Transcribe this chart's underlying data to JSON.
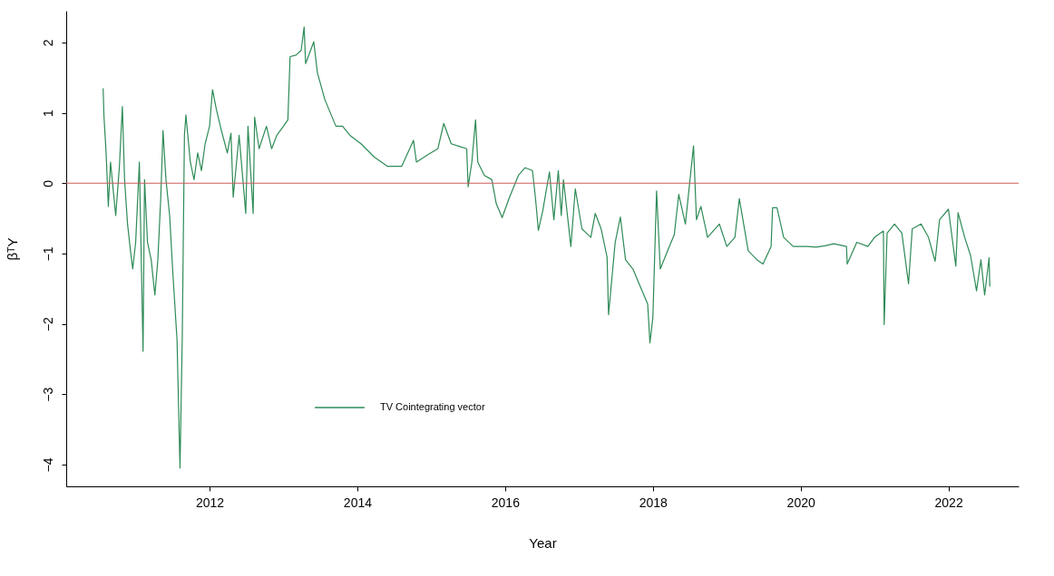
{
  "chart_data": {
    "type": "line",
    "xlabel": "Year",
    "ylabel": "βᵀY",
    "xlim": [
      2010.06,
      2022.95
    ],
    "xticks": [
      2012,
      2014,
      2016,
      2018,
      2020,
      2022
    ],
    "ylim": [
      -4.31,
      2.45
    ],
    "yticks": [
      -4,
      -3,
      -2,
      -1,
      0,
      1,
      2
    ],
    "grid": false,
    "legend": "bottom left",
    "line_style": "solid",
    "marker": "none",
    "ref_lines": [
      {
        "axis": "y",
        "value": 0,
        "color": "#cd5c5c",
        "line_style": "solid"
      }
    ],
    "series": [
      {
        "name": "TV Cointegrating vector",
        "color": "#2e8b57",
        "x": [
          2010.56,
          2010.57,
          2010.6,
          2010.63,
          2010.66,
          2010.7,
          2010.73,
          2010.78,
          2010.82,
          2010.85,
          2010.89,
          2010.93,
          2010.96,
          2011.0,
          2011.05,
          2011.1,
          2011.12,
          2011.16,
          2011.21,
          2011.26,
          2011.3,
          2011.34,
          2011.37,
          2011.41,
          2011.46,
          2011.5,
          2011.56,
          2011.6,
          2011.63,
          2011.66,
          2011.68,
          2011.74,
          2011.79,
          2011.84,
          2011.89,
          2011.94,
          2012.0,
          2012.04,
          2012.09,
          2012.16,
          2012.24,
          2012.29,
          2012.32,
          2012.4,
          2012.49,
          2012.52,
          2012.59,
          2012.61,
          2012.67,
          2012.77,
          2012.84,
          2012.91,
          2013.0,
          2013.06,
          2013.09,
          2013.17,
          2013.24,
          2013.28,
          2013.3,
          2013.41,
          2013.46,
          2013.56,
          2013.71,
          2013.8,
          2013.9,
          2014.05,
          2014.23,
          2014.41,
          2014.6,
          2014.76,
          2014.8,
          2014.96,
          2015.09,
          2015.17,
          2015.27,
          2015.39,
          2015.48,
          2015.5,
          2015.55,
          2015.6,
          2015.63,
          2015.72,
          2015.82,
          2015.88,
          2015.96,
          2016.06,
          2016.18,
          2016.27,
          2016.37,
          2016.41,
          2016.45,
          2016.51,
          2016.6,
          2016.66,
          2016.72,
          2016.76,
          2016.79,
          2016.89,
          2016.95,
          2017.04,
          2017.16,
          2017.22,
          2017.3,
          2017.38,
          2017.4,
          2017.49,
          2017.56,
          2017.63,
          2017.73,
          2017.83,
          2017.93,
          2017.96,
          2018.0,
          2018.05,
          2018.1,
          2018.2,
          2018.29,
          2018.35,
          2018.44,
          2018.55,
          2018.59,
          2018.65,
          2018.74,
          2018.9,
          2019.0,
          2019.11,
          2019.17,
          2019.29,
          2019.41,
          2019.49,
          2019.6,
          2019.62,
          2019.68,
          2019.77,
          2019.9,
          2020.09,
          2020.21,
          2020.33,
          2020.45,
          2020.62,
          2020.63,
          2020.76,
          2020.91,
          2021.0,
          2021.12,
          2021.13,
          2021.17,
          2021.27,
          2021.37,
          2021.46,
          2021.51,
          2021.63,
          2021.73,
          2021.82,
          2021.88,
          2022.0,
          2022.1,
          2022.13,
          2022.22,
          2022.3,
          2022.38,
          2022.44,
          2022.49,
          2022.55,
          2022.56
        ],
        "values": [
          1.35,
          0.97,
          0.43,
          -0.33,
          0.3,
          -0.14,
          -0.46,
          0.24,
          1.09,
          0.05,
          -0.58,
          -0.96,
          -1.22,
          -0.84,
          0.3,
          -2.39,
          0.05,
          -0.84,
          -1.09,
          -1.59,
          -1.09,
          -0.2,
          0.75,
          0.05,
          -0.46,
          -1.22,
          -2.23,
          -4.05,
          -2.23,
          0.68,
          0.97,
          0.3,
          0.05,
          0.43,
          0.18,
          0.56,
          0.81,
          1.33,
          1.06,
          0.75,
          0.43,
          0.71,
          -0.2,
          0.68,
          -0.43,
          0.81,
          -0.43,
          0.94,
          0.49,
          0.81,
          0.49,
          0.68,
          0.81,
          0.9,
          1.8,
          1.82,
          1.89,
          2.22,
          1.7,
          2.01,
          1.57,
          1.19,
          0.81,
          0.81,
          0.68,
          0.56,
          0.37,
          0.24,
          0.24,
          0.61,
          0.3,
          0.41,
          0.49,
          0.85,
          0.56,
          0.52,
          0.49,
          -0.05,
          0.3,
          0.9,
          0.3,
          0.11,
          0.05,
          -0.29,
          -0.49,
          -0.2,
          0.11,
          0.22,
          0.18,
          -0.2,
          -0.67,
          -0.39,
          0.16,
          -0.52,
          0.18,
          -0.46,
          0.05,
          -0.9,
          -0.08,
          -0.65,
          -0.77,
          -0.43,
          -0.65,
          -1.05,
          -1.87,
          -0.84,
          -0.48,
          -1.09,
          -1.22,
          -1.47,
          -1.72,
          -2.27,
          -1.91,
          -0.11,
          -1.22,
          -0.96,
          -0.73,
          -0.16,
          -0.58,
          0.53,
          -0.52,
          -0.33,
          -0.77,
          -0.58,
          -0.9,
          -0.77,
          -0.22,
          -0.96,
          -1.09,
          -1.15,
          -0.9,
          -0.35,
          -0.35,
          -0.77,
          -0.9,
          -0.9,
          -0.91,
          -0.89,
          -0.86,
          -0.9,
          -1.15,
          -0.84,
          -0.9,
          -0.77,
          -0.68,
          -2.01,
          -0.71,
          -0.58,
          -0.71,
          -1.43,
          -0.65,
          -0.58,
          -0.77,
          -1.11,
          -0.52,
          -0.37,
          -1.18,
          -0.42,
          -0.77,
          -1.03,
          -1.53,
          -1.09,
          -1.59,
          -1.06,
          -1.47
        ]
      }
    ]
  }
}
